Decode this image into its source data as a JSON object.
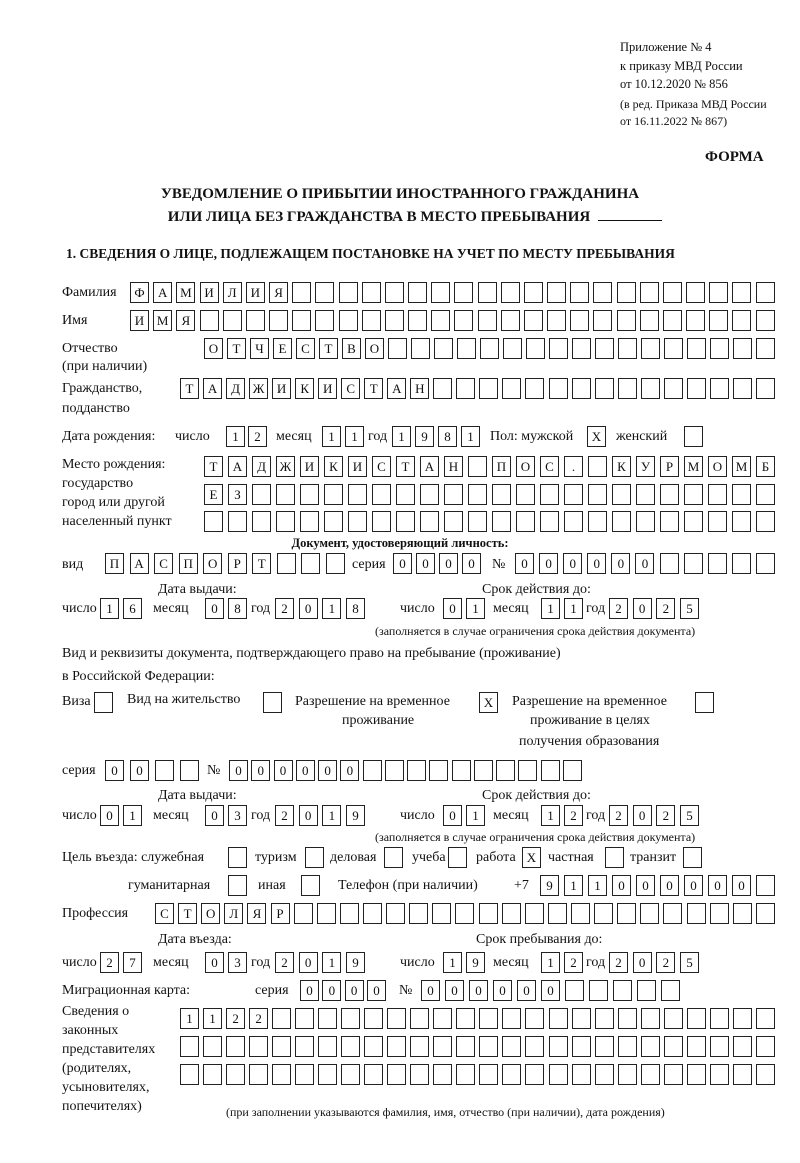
{
  "header": {
    "appendix": [
      "Приложение № 4",
      "к приказу МВД России",
      "от 10.12.2020 № 856",
      "(в ред. Приказа МВД России",
      "от 16.11.2022 № 867)"
    ],
    "forma": "ФОРМА",
    "title_line1": "УВЕДОМЛЕНИЕ О ПРИБЫТИИ ИНОСТРАННОГО ГРАЖДАНИНА",
    "title_line2": "ИЛИ ЛИЦА БЕЗ ГРАЖДАНСТВА В МЕСТО ПРЕБЫВАНИЯ",
    "section1_title": "1. СВЕДЕНИЯ О ЛИЦЕ, ПОДЛЕЖАЩЕМ ПОСТАНОВКЕ НА УЧЕТ ПО МЕСТУ ПРЕБЫВАНИЯ"
  },
  "labels": {
    "day": "число",
    "month": "месяц",
    "year": "год",
    "number_sign": "№",
    "series": "серия",
    "validity_note": "(заполняется в случае ограничения срока действия документа)"
  },
  "person": {
    "surname_label": "Фамилия",
    "surname": "ФАМИЛИЯ",
    "name_label": "Имя",
    "name": "ИМЯ",
    "patronymic_label": "Отчество",
    "patronymic_note": "(при наличии)",
    "patronymic": "ОТЧЕСТВО",
    "citizenship_label1": "Гражданство,",
    "citizenship_label2": "подданство",
    "citizenship": "ТАДЖИКИСТАН"
  },
  "birth": {
    "label": "Дата рождения:",
    "day": "12",
    "month": "11",
    "year": "1981",
    "sex_label": "Пол: мужской",
    "male_mark": "X",
    "female_label": "женский",
    "female_mark": ""
  },
  "birthplace": {
    "labels": [
      "Место рождения:",
      "государство",
      "город или другой",
      "населенный пункт"
    ],
    "lines": [
      "ТАДЖИКИСТАН ПОС. КУРМОМБ",
      "ЕЗ",
      ""
    ]
  },
  "id_doc": {
    "heading": "Документ, удостоверяющий личность:",
    "type_label": "вид",
    "type": "ПАСПОРТ",
    "series": "0000",
    "number": "000000",
    "issue_label": "Дата выдачи:",
    "expiry_label": "Срок действия до:",
    "issue": {
      "day": "16",
      "month": "08",
      "year": "2018"
    },
    "expiry": {
      "day": "01",
      "month": "11",
      "year": "2025"
    }
  },
  "stay_doc": {
    "heading1": "Вид и реквизиты документа, подтверждающего право на пребывание (проживание)",
    "heading2": "в Российской Федерации:",
    "visa_label": "Виза",
    "visa_mark": "",
    "residence_label": "Вид на жительство",
    "residence_mark": "",
    "trp_label1": "Разрешение на временное",
    "trp_label2": "проживание",
    "trp_mark": "X",
    "trp_edu_label1": "Разрешение на временное",
    "trp_edu_label2": "проживание в целях",
    "trp_edu_label3": "получения образования",
    "trp_edu_mark": "",
    "series": "00",
    "number": "000000",
    "issue_label": "Дата выдачи:",
    "expiry_label": "Срок действия до:",
    "issue": {
      "day": "01",
      "month": "03",
      "year": "2019"
    },
    "expiry": {
      "day": "01",
      "month": "12",
      "year": "2025"
    }
  },
  "purpose": {
    "label": "Цель въезда: служебная",
    "official": "",
    "tourism_label": "туризм",
    "tourism": "",
    "business_label": "деловая",
    "business": "",
    "study_label": "учеба",
    "study": "",
    "work_label": "работа",
    "work": "X",
    "private_label": "частная",
    "private": "",
    "transit_label": "транзит",
    "transit": "",
    "humanitarian_label": "гуманитарная",
    "humanitarian": "",
    "other_label": "иная",
    "other": ""
  },
  "phone": {
    "label": "Телефон (при наличии)",
    "prefix": "+7",
    "number": "911000000"
  },
  "profession": {
    "label": "Профессия",
    "value": "СТОЛЯР"
  },
  "entry": {
    "entry_label": "Дата въезда:",
    "stay_until_label": "Срок пребывания до:",
    "entry_date": {
      "day": "27",
      "month": "03",
      "year": "2019"
    },
    "stay_until": {
      "day": "19",
      "month": "12",
      "year": "2025"
    }
  },
  "migration_card": {
    "label": "Миграционная карта:",
    "series": "0000",
    "number": "000000"
  },
  "representatives": {
    "labels": [
      "Сведения о",
      "законных",
      "представителях",
      "(родителях,",
      "усыновителях,",
      "попечителях)"
    ],
    "lines": [
      "1122",
      "",
      ""
    ],
    "note": "(при заполнении указываются фамилия, имя, отчество (при наличии), дата рождения)"
  }
}
